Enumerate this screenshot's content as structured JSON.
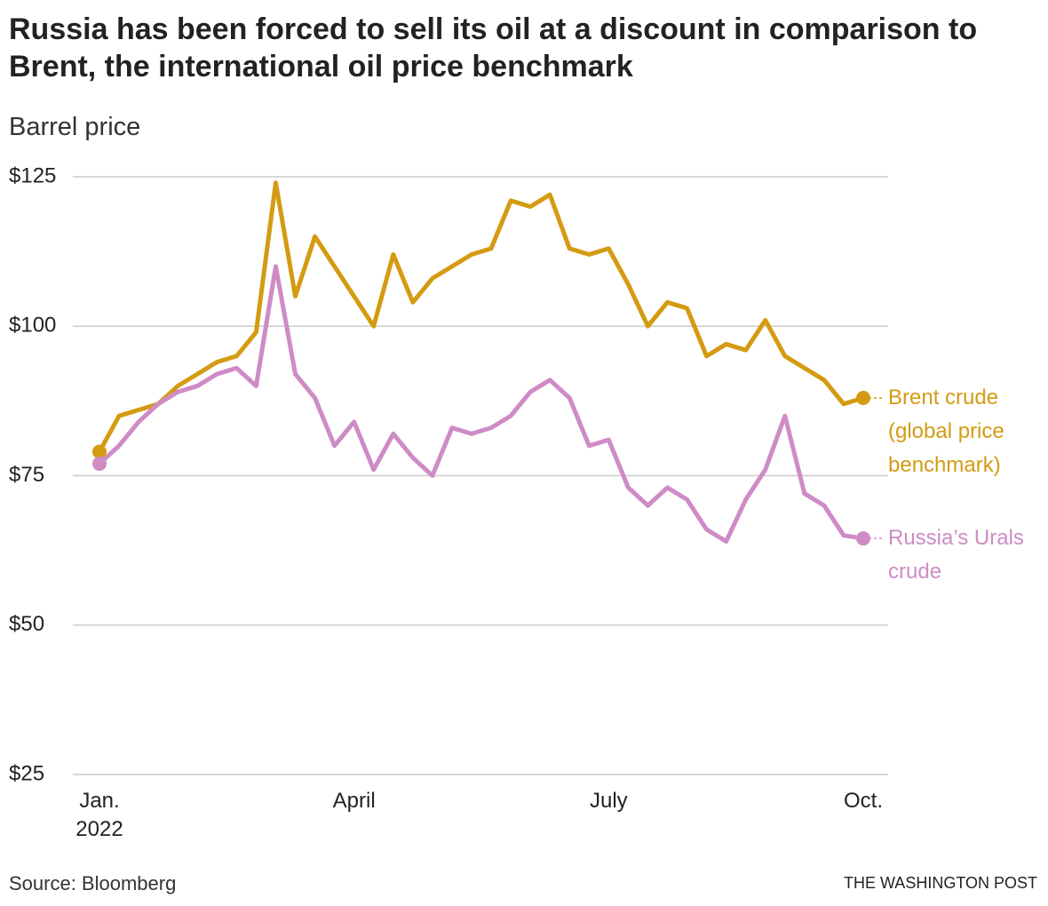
{
  "chart_data": {
    "type": "line",
    "title": "Russia has been forced to sell its oil at a discount in comparison to Brent, the international oil price benchmark",
    "y_label": "Barrel price",
    "source": "Source: Bloomberg",
    "credit": "THE WASHINGTON POST",
    "categories": [
      "Jan. 2022",
      null,
      null,
      null,
      null,
      null,
      null,
      null,
      null,
      null,
      null,
      null,
      null,
      "April",
      null,
      null,
      null,
      null,
      null,
      null,
      null,
      null,
      null,
      null,
      null,
      null,
      "July",
      null,
      null,
      null,
      null,
      null,
      null,
      null,
      null,
      null,
      null,
      null,
      null,
      "Oct."
    ],
    "series": [
      {
        "name": "Brent crude (global price benchmark)",
        "color": "#d49b12",
        "values": [
          79,
          85,
          86,
          87,
          90,
          92,
          94,
          95,
          99,
          124,
          105,
          115,
          110,
          105,
          100,
          112,
          104,
          108,
          110,
          112,
          113,
          121,
          120,
          122,
          113,
          112,
          113,
          107,
          100,
          104,
          103,
          95,
          97,
          96,
          101,
          95,
          93,
          91,
          87,
          88
        ]
      },
      {
        "name": "Russia’s Urals crude",
        "color": "#cf8bc6",
        "values": [
          77,
          80,
          84,
          87,
          89,
          90,
          92,
          93,
          90,
          110,
          92,
          88,
          80,
          84,
          76,
          82,
          78,
          75,
          83,
          82,
          83,
          85,
          89,
          91,
          88,
          80,
          81,
          73,
          70,
          73,
          71,
          66,
          64,
          71,
          76,
          85,
          72,
          70,
          65,
          64.5
        ]
      }
    ],
    "ylim": [
      25,
      125
    ],
    "yticks": [
      {
        "value": 25,
        "label": "$25"
      },
      {
        "value": 50,
        "label": "$50"
      },
      {
        "value": 75,
        "label": "$75"
      },
      {
        "value": 100,
        "label": "$100"
      },
      {
        "value": 125,
        "label": "$125"
      }
    ],
    "grid": true
  }
}
